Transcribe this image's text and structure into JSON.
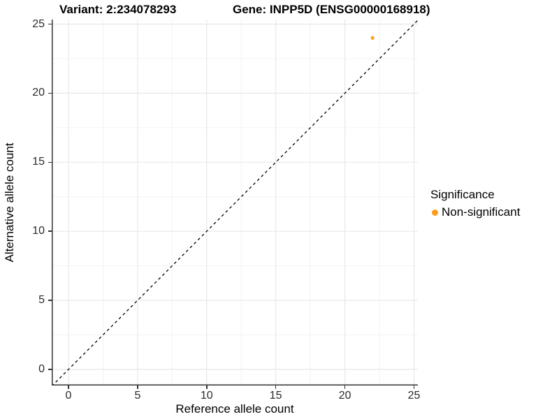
{
  "titles": {
    "variant": "Variant: 2:234078293",
    "gene": "Gene: INPP5D (ENSG00000168918)"
  },
  "axes": {
    "x": {
      "label": "Reference allele count",
      "ticks": [
        0,
        5,
        10,
        15,
        20,
        25
      ]
    },
    "y": {
      "label": "Alternative allele count",
      "ticks": [
        0,
        5,
        10,
        15,
        20,
        25
      ]
    }
  },
  "legend": {
    "title": "Significance",
    "items": [
      {
        "label": "Non-significant",
        "color": "#FF9E1B"
      }
    ]
  },
  "colors": {
    "point": "#FF9E1B",
    "grid_major": "#E8E8E8",
    "grid_minor": "#F3F3F3",
    "axis_line": "#333333",
    "identity_line": "#000000"
  },
  "chart_data": {
    "type": "scatter",
    "title": "Variant: 2:234078293 | Gene: INPP5D (ENSG00000168918)",
    "xlabel": "Reference allele count",
    "ylabel": "Alternative allele count",
    "xlim": [
      0,
      25
    ],
    "ylim": [
      0,
      25
    ],
    "x_ticks": [
      0,
      5,
      10,
      15,
      20,
      25
    ],
    "y_ticks": [
      0,
      5,
      10,
      15,
      20,
      25
    ],
    "grid": "major+minor",
    "legend_position": "right",
    "identity_line": {
      "slope": 1,
      "intercept": 0,
      "style": "dashed"
    },
    "series": [
      {
        "name": "Non-significant",
        "color": "#FF9E1B",
        "points": [
          [
            22,
            24
          ]
        ]
      }
    ]
  }
}
